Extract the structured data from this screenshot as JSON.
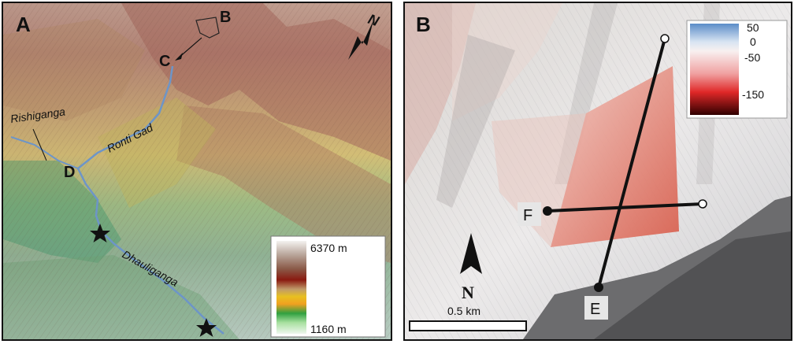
{
  "panelA": {
    "letter": "A",
    "points": {
      "B": "B",
      "C": "C",
      "D": "D"
    },
    "rivers": {
      "rishiganga": "Rishiganga",
      "ronti_gad": "Ronti Gad",
      "dhauliganga": "Dhauliganga"
    },
    "north_label": "N",
    "legend": {
      "max": "6370 m",
      "min": "1160 m"
    }
  },
  "panelB": {
    "letter": "B",
    "legend_ticks": [
      "50",
      "0",
      "-50",
      "-150"
    ],
    "profile_labels": {
      "E": "E",
      "F": "F"
    },
    "north_label": "N",
    "scale_label": "0.5 km"
  }
}
